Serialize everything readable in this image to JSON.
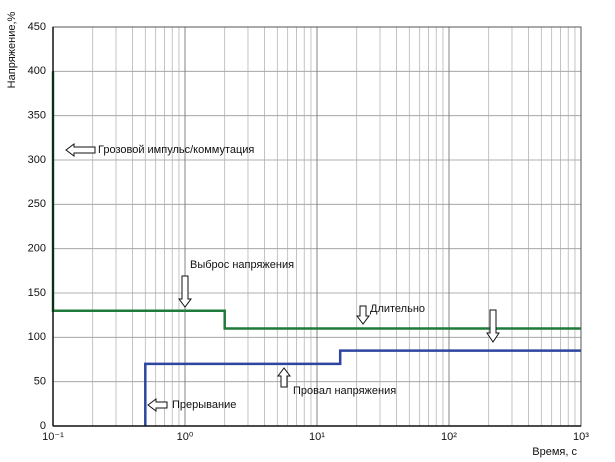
{
  "chart_data": {
    "type": "line",
    "x_label": "Время, с",
    "y_label": "Напряжение,%",
    "log_x": true,
    "grid": true,
    "xlim": [
      0.1,
      1000
    ],
    "ylim": [
      0,
      450
    ],
    "xticks": [
      {
        "value": 0.1,
        "label": "10⁻¹"
      },
      {
        "value": 1,
        "label": "10⁰"
      },
      {
        "value": 10,
        "label": "10¹"
      },
      {
        "value": 100,
        "label": "10²"
      },
      {
        "value": 1000,
        "label": "10³"
      }
    ],
    "xminor_ticks": [
      0.2,
      0.3,
      0.4,
      0.5,
      0.6,
      0.7,
      0.8,
      0.9,
      2,
      3,
      4,
      5,
      6,
      7,
      8,
      9,
      20,
      30,
      40,
      50,
      60,
      70,
      80,
      90,
      200,
      300,
      400,
      500,
      600,
      700,
      800,
      900
    ],
    "yticks": [
      0,
      50,
      100,
      150,
      200,
      250,
      300,
      350,
      400,
      450
    ],
    "series": [
      {
        "color": "#1f7a3c",
        "x": [
          0.1,
          0.1,
          2,
          2,
          1000
        ],
        "values": [
          400,
          130,
          130,
          110,
          110
        ]
      },
      {
        "color": "#2c46a0",
        "x": [
          0.5,
          0.5,
          15,
          15,
          1000
        ],
        "values": [
          0,
          70,
          70,
          85,
          85
        ]
      }
    ],
    "annotations": [
      "Грозовой импульс/коммутация",
      "Выброс напряжения",
      "Длительно",
      "Провал напряжения",
      "Прерывание"
    ]
  }
}
